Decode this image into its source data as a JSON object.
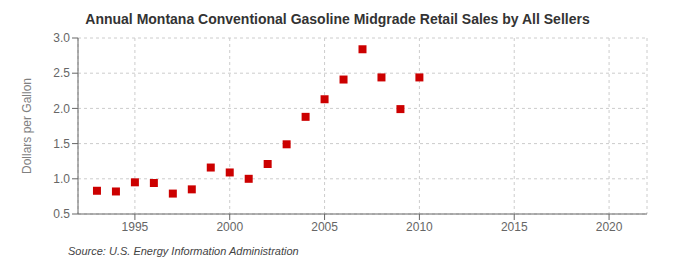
{
  "chart_data": {
    "type": "scatter",
    "title": "Annual Montana Conventional Gasoline Midgrade Retail Sales by All Sellers",
    "ylabel": "Dollars per Gallon",
    "annotation": "Source: U.S. Energy Information Administration",
    "x": [
      1993,
      1994,
      1995,
      1996,
      1997,
      1998,
      1999,
      2000,
      2001,
      2002,
      2003,
      2004,
      2005,
      2006,
      2007,
      2008,
      2009,
      2010
    ],
    "values": [
      0.83,
      0.82,
      0.95,
      0.94,
      0.79,
      0.85,
      1.16,
      1.09,
      1.0,
      1.21,
      1.49,
      1.88,
      2.13,
      2.41,
      2.84,
      2.44,
      1.99,
      2.44
    ],
    "color": "#cc0000",
    "marker": "square",
    "xlim": [
      1992,
      2022
    ],
    "ylim": [
      0.5,
      3.0
    ],
    "xticks": [
      1995,
      2000,
      2005,
      2010,
      2015,
      2020
    ],
    "yticks": [
      0.5,
      {
        "value": 1.0,
        "label": "1.0"
      },
      1.5,
      {
        "value": 2.0,
        "label": "2.0"
      },
      2.5,
      {
        "value": 3.0,
        "label": "3.0"
      }
    ],
    "grid": true
  }
}
